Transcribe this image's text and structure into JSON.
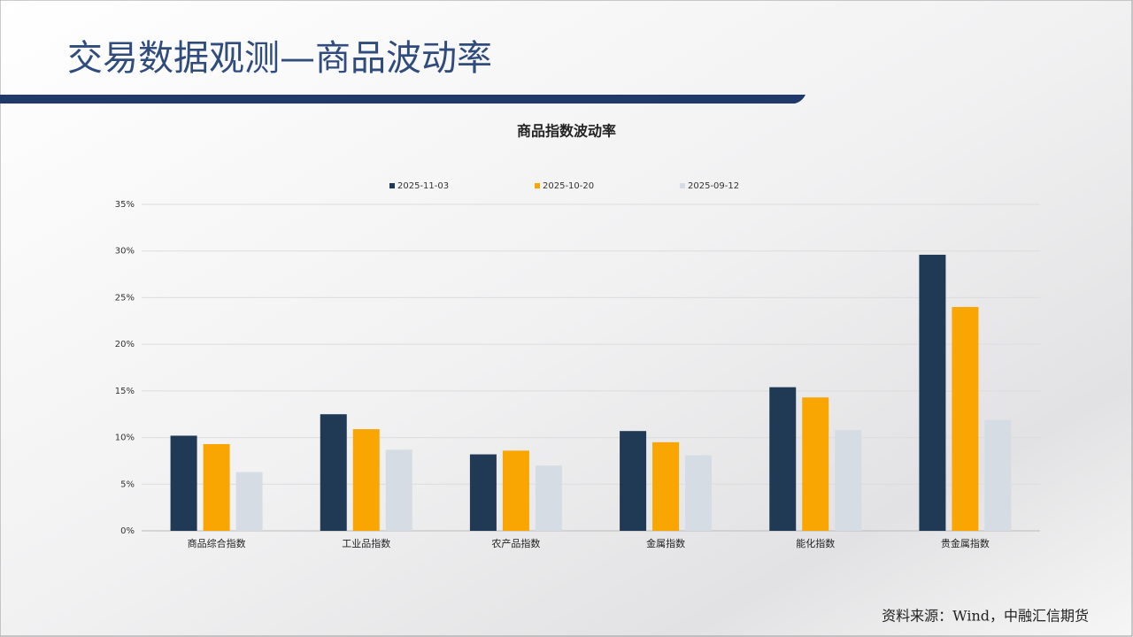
{
  "header": {
    "title": "交易数据观测—商品波动率"
  },
  "chart_data": {
    "type": "bar",
    "title": "商品指数波动率",
    "categories": [
      "商品综合指数",
      "工业品指数",
      "农产品指数",
      "金属指数",
      "能化指数",
      "贵金属指数"
    ],
    "series": [
      {
        "name": "2025-11-03",
        "color": "#203a56",
        "values": [
          10.2,
          12.5,
          8.2,
          10.7,
          15.4,
          29.6
        ]
      },
      {
        "name": "2025-10-20",
        "color": "#f9a602",
        "values": [
          9.3,
          10.9,
          8.6,
          9.5,
          14.3,
          24.0
        ]
      },
      {
        "name": "2025-09-12",
        "color": "#d6dce4",
        "values": [
          6.3,
          8.7,
          7.0,
          8.1,
          10.8,
          11.9
        ]
      }
    ],
    "ylim": [
      0,
      35
    ],
    "yticks": [
      {
        "value": 0,
        "label": "0%"
      },
      {
        "value": 5,
        "label": "5%"
      },
      {
        "value": 10,
        "label": "10%"
      },
      {
        "value": 15,
        "label": "15%"
      },
      {
        "value": 20,
        "label": "20%"
      },
      {
        "value": 25,
        "label": "25%"
      },
      {
        "value": 30,
        "label": "30%"
      },
      {
        "value": 35,
        "label": "35%"
      }
    ],
    "grid": true,
    "legend": "top"
  },
  "footer": {
    "source": "资料来源：Wind，中融汇信期货"
  }
}
